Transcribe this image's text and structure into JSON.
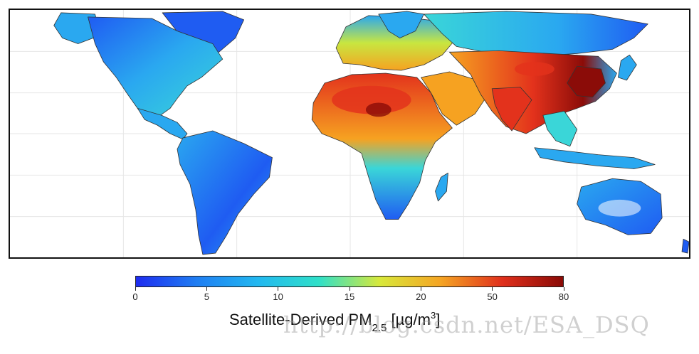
{
  "colorbar": {
    "ticks": [
      "0",
      "5",
      "10",
      "15",
      "20",
      "50",
      "80"
    ],
    "title_main": "Satellite-Derived PM",
    "title_sub": "2.5",
    "title_unit_open": " [µg/m",
    "title_unit_sup": "3",
    "title_unit_close": "]",
    "colors": [
      "#1e2cf0",
      "#1f7ef2",
      "#22b8f0",
      "#2fe0c8",
      "#d8e83a",
      "#f5a423",
      "#e0301c",
      "#8a0a06"
    ]
  },
  "map": {
    "colors": {
      "very_low": "#1f5cf2",
      "low": "#2aa8f0",
      "mid": "#3ad6d8",
      "moderate": "#c8e640",
      "high": "#f6a221",
      "very_high": "#e3321c",
      "extreme": "#8b0c08"
    }
  },
  "watermark": "http://blog.csdn.net/ESA_DSQ"
}
